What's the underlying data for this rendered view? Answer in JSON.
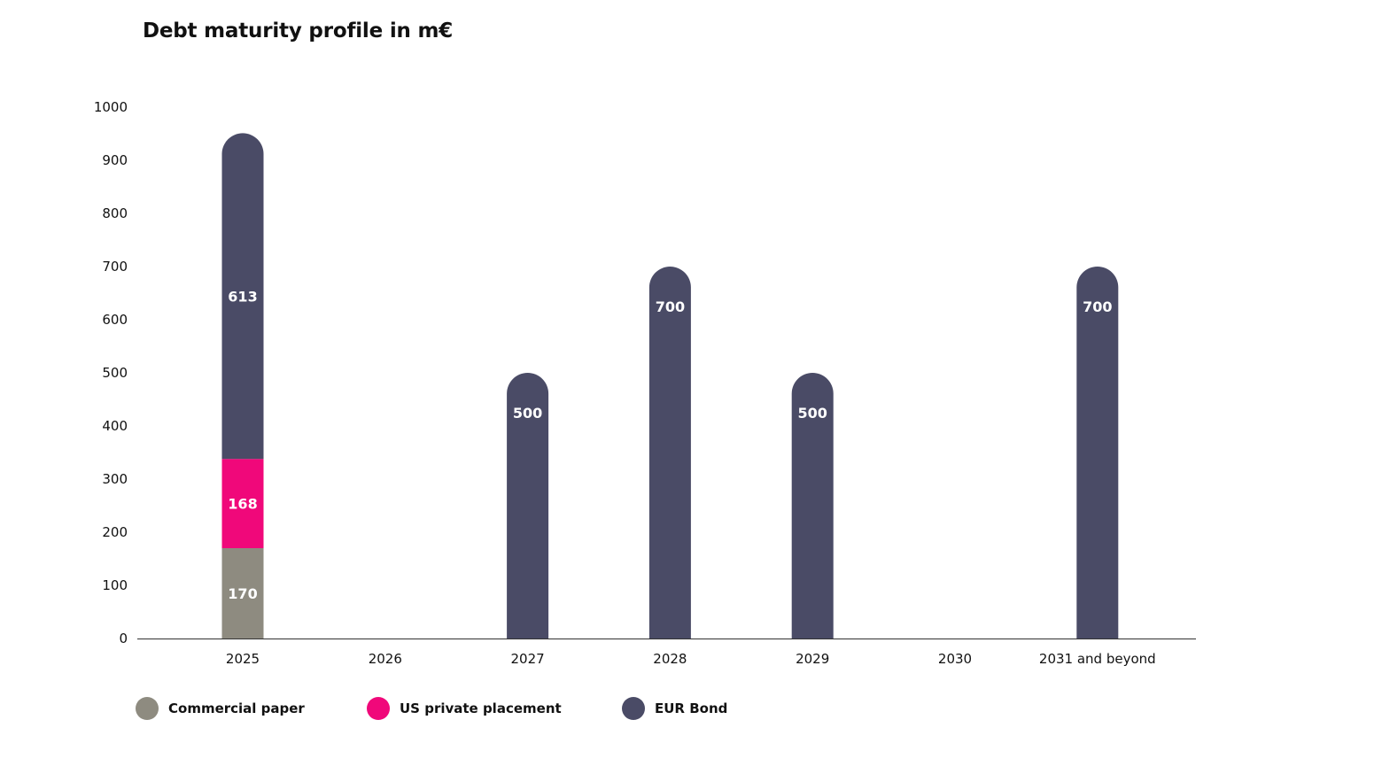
{
  "chart_data": {
    "type": "bar",
    "stacked": true,
    "title": "Debt maturity profile in m€",
    "xlabel": "",
    "ylabel": "",
    "categories": [
      "2025",
      "2026",
      "2027",
      "2028",
      "2029",
      "2030",
      "2031 and beyond"
    ],
    "ylim": [
      0,
      1000
    ],
    "yticks": [
      0,
      100,
      200,
      300,
      400,
      500,
      600,
      700,
      800,
      900,
      1000
    ],
    "grid": false,
    "legend_position": "bottom-left",
    "series": [
      {
        "name": "Commercial paper",
        "color": "#8e8b80",
        "values": [
          170,
          0,
          0,
          0,
          0,
          0,
          0
        ]
      },
      {
        "name": "US private placement",
        "color": "#f0087a",
        "values": [
          168,
          0,
          0,
          0,
          0,
          0,
          0
        ]
      },
      {
        "name": "EUR Bond",
        "color": "#4a4b66",
        "values": [
          613,
          0,
          500,
          700,
          500,
          0,
          700
        ]
      }
    ]
  }
}
